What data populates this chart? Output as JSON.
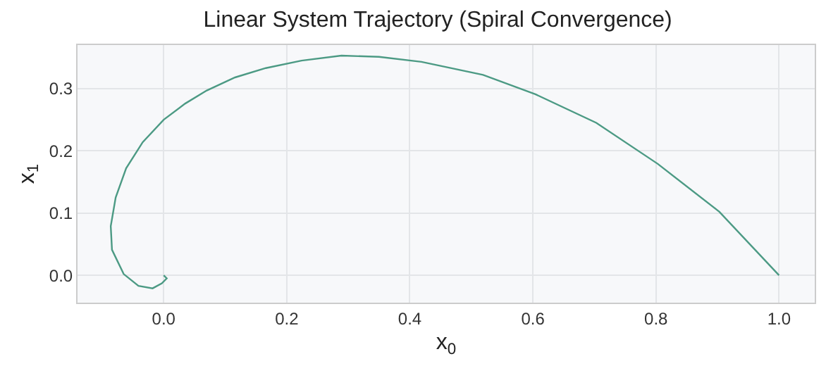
{
  "chart_data": {
    "type": "line",
    "title": "Linear System Trajectory (Spiral Convergence)",
    "xlabel": "x$_{0}$",
    "ylabel": "x$_{1}$",
    "x": [
      1.0,
      0.903,
      0.803,
      0.703,
      0.604,
      0.519,
      0.419,
      0.35,
      0.289,
      0.224,
      0.166,
      0.116,
      0.07,
      0.035,
      0.0,
      -0.034,
      -0.061,
      -0.078,
      -0.086,
      -0.084,
      -0.065,
      -0.041,
      -0.018,
      -0.003,
      0.005,
      0.0
    ],
    "series": [
      {
        "color": "#4c9a84",
        "values": [
          0.0,
          0.102,
          0.179,
          0.245,
          0.291,
          0.322,
          0.343,
          0.351,
          0.353,
          0.345,
          0.333,
          0.318,
          0.297,
          0.276,
          0.25,
          0.214,
          0.172,
          0.125,
          0.079,
          0.041,
          0.002,
          -0.017,
          -0.021,
          -0.013,
          -0.005,
          0.0
        ]
      }
    ],
    "xlim": [
      -0.14,
      1.058
    ],
    "ylim": [
      -0.044,
      0.37
    ],
    "xticks": [
      {
        "value": 0,
        "label": "0.0"
      },
      0.2,
      0.4,
      0.6,
      0.8,
      {
        "value": 1,
        "label": "1.0"
      }
    ],
    "yticks": [
      {
        "value": 0,
        "label": "0.0"
      },
      0.1,
      0.2,
      0.3
    ],
    "grid": true,
    "marker": "none",
    "line_style": "solid"
  }
}
